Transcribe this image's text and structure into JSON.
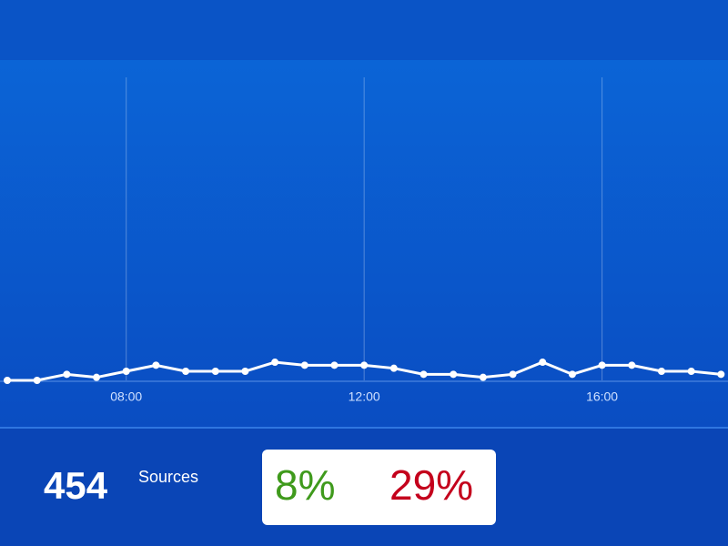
{
  "chart_data": {
    "type": "line",
    "categories": [
      null,
      null,
      null,
      null,
      "08:00",
      null,
      null,
      null,
      null,
      null,
      null,
      null,
      "12:00",
      null,
      null,
      null,
      null,
      null,
      null,
      null,
      "16:00",
      null,
      null,
      null,
      null
    ],
    "series": [
      {
        "color": "#ffffff",
        "values": [
          0,
          0,
          2,
          1,
          3,
          5,
          3,
          3,
          3,
          6,
          5,
          5,
          5,
          4,
          2,
          2,
          1,
          2,
          6,
          2,
          5,
          5,
          3,
          3,
          2
        ]
      }
    ],
    "ylim": [
      0,
      100
    ],
    "grid": true
  },
  "stats": {
    "sources": "454",
    "sources_label": "Sources",
    "positive": "8%",
    "negative": "29%"
  }
}
